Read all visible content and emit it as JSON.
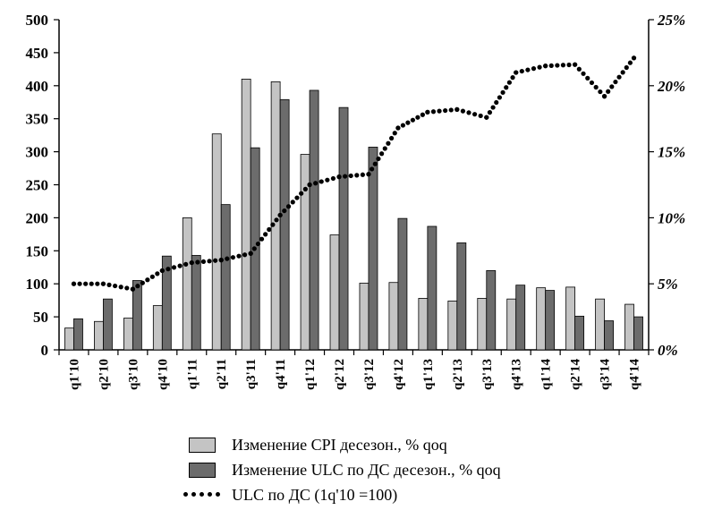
{
  "chart_data": {
    "type": "bar",
    "categories": [
      "q1'10",
      "q2'10",
      "q3'10",
      "q4'10",
      "q1'11",
      "q2'11",
      "q3'11",
      "q4'11",
      "q1'12",
      "q2'12",
      "q3'12",
      "q4'12",
      "q1'13",
      "q2'13",
      "q3'13",
      "q4'13",
      "q1'14",
      "q2'14",
      "q3'14",
      "q4'14"
    ],
    "series": [
      {
        "name": "Изменение CPI десезон., % qoq",
        "kind": "bar",
        "axis": "left",
        "color": "#c4c4c4",
        "values": [
          33,
          43,
          48,
          67,
          200,
          327,
          410,
          406,
          296,
          174,
          101,
          102,
          78,
          74,
          78,
          77,
          94,
          95,
          77,
          69
        ]
      },
      {
        "name": "Изменение ULC по ДС десезон., % qoq",
        "kind": "bar",
        "axis": "left",
        "color": "#6c6c6c",
        "values": [
          47,
          77,
          105,
          142,
          143,
          220,
          306,
          379,
          393,
          367,
          307,
          199,
          187,
          162,
          120,
          98,
          90,
          51,
          44,
          50
        ]
      },
      {
        "name": "ULC по ДС (1q'10 =100)",
        "kind": "line",
        "axis": "right",
        "style": "dotted",
        "color": "#000000",
        "values": [
          5.0,
          5.0,
          4.6,
          6.0,
          6.6,
          6.8,
          7.3,
          10.2,
          12.5,
          13.1,
          13.3,
          16.8,
          18.0,
          18.2,
          17.6,
          21.0,
          21.5,
          21.6,
          19.2,
          22.1
        ]
      }
    ],
    "yleft": {
      "lim": [
        0,
        500
      ],
      "ticks": [
        "0",
        "50",
        "100",
        "150",
        "200",
        "250",
        "300",
        "350",
        "400",
        "450",
        "500"
      ]
    },
    "yright": {
      "lim": [
        0,
        25
      ],
      "ticks": [
        "0%",
        "5%",
        "10%",
        "15%",
        "20%",
        "25%"
      ]
    },
    "legend_position": "bottom",
    "grid": false
  }
}
